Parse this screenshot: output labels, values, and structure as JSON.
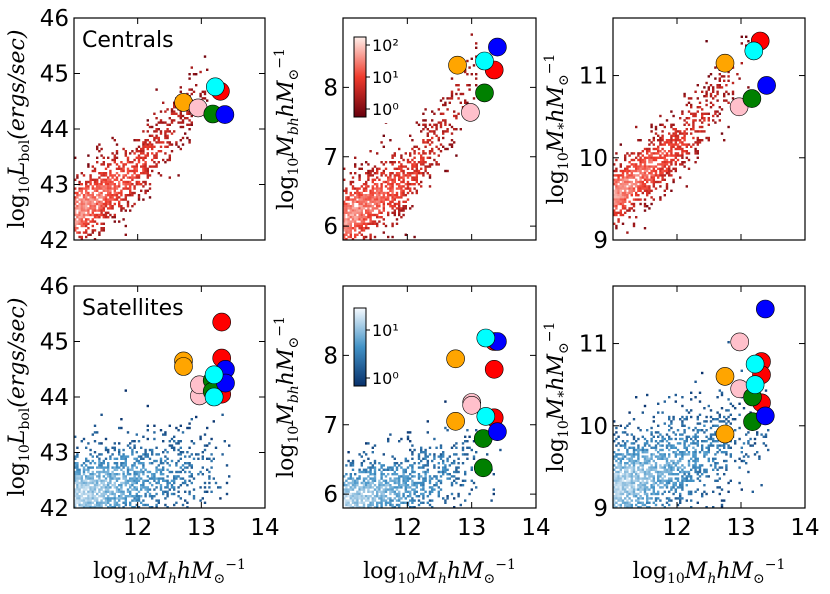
{
  "figure": {
    "row_labels": [
      "Centrals",
      "Satellites"
    ],
    "colorbar_top_ticks": [
      "10²",
      "10¹",
      "10⁰"
    ],
    "colorbar_bottom_ticks": [
      "10¹",
      "10⁰"
    ],
    "xlabel": "log₁₀M_h hM_⊙⁻¹",
    "ylabel_lbol": "log₁₀L_bol(ergs/sec)",
    "ylabel_mbh": "log₁₀M_bh hM_⊙⁻¹",
    "ylabel_mstar": "log₁₀M_* hM_⊙⁻¹",
    "cmap_top": "Reds",
    "cmap_bottom": "Blues"
  },
  "chart_data": [
    {
      "id": "centrals-lbol",
      "type": "scatter",
      "row": "Centrals",
      "label": "Centrals",
      "xlim": [
        11,
        14
      ],
      "ylim": [
        42,
        46
      ],
      "xticks": [
        12,
        13,
        14
      ],
      "yticks": [
        42,
        43,
        44,
        45,
        46
      ],
      "xlabel": "log₁₀M_h hM_⊙⁻¹",
      "ylabel": "log₁₀L_bol(ergs/sec)",
      "show_xticklabels": false,
      "heatmap": {
        "cmap": "Reds",
        "trend": [
          [
            11.0,
            42.5
          ],
          [
            12.0,
            43.3
          ],
          [
            12.8,
            44.4
          ],
          [
            13.0,
            44.8
          ]
        ],
        "spread": 0.35
      },
      "points": [
        {
          "x": 12.72,
          "y": 44.48,
          "color": "#ffa500"
        },
        {
          "x": 12.95,
          "y": 44.38,
          "color": "#ffc0cb"
        },
        {
          "x": 13.3,
          "y": 44.68,
          "color": "#ff0000"
        },
        {
          "x": 13.18,
          "y": 44.27,
          "color": "#008000"
        },
        {
          "x": 13.37,
          "y": 44.26,
          "color": "#0000ff"
        },
        {
          "x": 13.22,
          "y": 44.76,
          "color": "#00ffff"
        }
      ]
    },
    {
      "id": "centrals-mbh",
      "type": "scatter",
      "row": "Centrals",
      "xlim": [
        11,
        14
      ],
      "ylim": [
        5.8,
        9.0
      ],
      "xticks": [
        12,
        13,
        14
      ],
      "yticks": [
        6,
        7,
        8
      ],
      "xlabel": "log₁₀M_h hM_⊙⁻¹",
      "ylabel": "log₁₀M_bh hM_⊙⁻¹",
      "show_xticklabels": false,
      "colorbar": {
        "cmap": "Reds",
        "ticks": [
          "10²",
          "10¹",
          "10⁰"
        ],
        "position": "upper-left"
      },
      "heatmap": {
        "cmap": "Reds",
        "trend": [
          [
            11.0,
            6.1
          ],
          [
            12.0,
            6.7
          ],
          [
            12.8,
            7.8
          ],
          [
            13.0,
            8.3
          ]
        ],
        "spread": 0.3
      },
      "points": [
        {
          "x": 12.78,
          "y": 8.32,
          "color": "#ffa500"
        },
        {
          "x": 12.98,
          "y": 7.64,
          "color": "#ffc0cb"
        },
        {
          "x": 13.35,
          "y": 8.25,
          "color": "#ff0000"
        },
        {
          "x": 13.2,
          "y": 7.92,
          "color": "#008000"
        },
        {
          "x": 13.4,
          "y": 8.58,
          "color": "#0000ff"
        },
        {
          "x": 13.2,
          "y": 8.38,
          "color": "#00ffff"
        }
      ]
    },
    {
      "id": "centrals-mstar",
      "type": "scatter",
      "row": "Centrals",
      "xlim": [
        11,
        14
      ],
      "ylim": [
        9.0,
        11.7
      ],
      "xticks": [
        12,
        13,
        14
      ],
      "yticks": [
        9,
        10,
        11
      ],
      "xlabel": "log₁₀M_h hM_⊙⁻¹",
      "ylabel": "log₁₀M_* hM_⊙⁻¹",
      "show_xticklabels": false,
      "heatmap": {
        "cmap": "Reds",
        "trend": [
          [
            11.0,
            9.55
          ],
          [
            12.0,
            10.15
          ],
          [
            12.8,
            10.9
          ],
          [
            13.0,
            11.1
          ]
        ],
        "spread": 0.22
      },
      "points": [
        {
          "x": 12.75,
          "y": 11.15,
          "color": "#ffa500"
        },
        {
          "x": 12.97,
          "y": 10.62,
          "color": "#ffc0cb"
        },
        {
          "x": 13.3,
          "y": 11.42,
          "color": "#ff0000"
        },
        {
          "x": 13.17,
          "y": 10.72,
          "color": "#008000"
        },
        {
          "x": 13.4,
          "y": 10.88,
          "color": "#0000ff"
        },
        {
          "x": 13.2,
          "y": 11.3,
          "color": "#00ffff"
        }
      ]
    },
    {
      "id": "satellites-lbol",
      "type": "scatter",
      "row": "Satellites",
      "label": "Satellites",
      "xlim": [
        11,
        14
      ],
      "ylim": [
        42,
        46
      ],
      "xticks": [
        12,
        13,
        14
      ],
      "yticks": [
        42,
        43,
        44,
        45,
        46
      ],
      "xlabel": "log₁₀M_h hM_⊙⁻¹",
      "ylabel": "log₁₀L_bol(ergs/sec)",
      "show_xticklabels": true,
      "heatmap": {
        "cmap": "Blues",
        "trend": [
          [
            11.0,
            42.25
          ],
          [
            12.0,
            42.5
          ],
          [
            12.8,
            42.7
          ],
          [
            13.4,
            42.7
          ]
        ],
        "spread": 0.45
      },
      "points": [
        {
          "x": 12.72,
          "y": 44.65,
          "color": "#ffa500"
        },
        {
          "x": 12.72,
          "y": 44.55,
          "color": "#ffa500"
        },
        {
          "x": 12.97,
          "y": 44.02,
          "color": "#ffc0cb"
        },
        {
          "x": 12.97,
          "y": 44.22,
          "color": "#ffc0cb"
        },
        {
          "x": 13.32,
          "y": 45.35,
          "color": "#ff0000"
        },
        {
          "x": 13.32,
          "y": 44.7,
          "color": "#ff0000"
        },
        {
          "x": 13.32,
          "y": 44.05,
          "color": "#ff0000"
        },
        {
          "x": 13.17,
          "y": 44.3,
          "color": "#008000"
        },
        {
          "x": 13.17,
          "y": 44.1,
          "color": "#008000"
        },
        {
          "x": 13.38,
          "y": 44.5,
          "color": "#0000ff"
        },
        {
          "x": 13.38,
          "y": 44.25,
          "color": "#0000ff"
        },
        {
          "x": 13.2,
          "y": 44.4,
          "color": "#00ffff"
        },
        {
          "x": 13.2,
          "y": 44.0,
          "color": "#00ffff"
        }
      ]
    },
    {
      "id": "satellites-mbh",
      "type": "scatter",
      "row": "Satellites",
      "xlim": [
        11,
        14
      ],
      "ylim": [
        5.8,
        9.0
      ],
      "xticks": [
        12,
        13,
        14
      ],
      "yticks": [
        6,
        7,
        8
      ],
      "xlabel": "log₁₀M_h hM_⊙⁻¹",
      "ylabel": "log₁₀M_bh hM_⊙⁻¹",
      "show_xticklabels": true,
      "colorbar": {
        "cmap": "Blues",
        "ticks": [
          "10¹",
          "10⁰"
        ],
        "position": "upper-left"
      },
      "heatmap": {
        "cmap": "Blues",
        "trend": [
          [
            11.0,
            5.9
          ],
          [
            12.0,
            6.15
          ],
          [
            12.8,
            6.4
          ],
          [
            13.4,
            6.5
          ]
        ],
        "spread": 0.3
      },
      "points": [
        {
          "x": 12.75,
          "y": 7.95,
          "color": "#ffa500"
        },
        {
          "x": 12.75,
          "y": 7.05,
          "color": "#ffa500"
        },
        {
          "x": 13.0,
          "y": 7.32,
          "color": "#ffc0cb"
        },
        {
          "x": 13.0,
          "y": 7.28,
          "color": "#ffc0cb"
        },
        {
          "x": 13.35,
          "y": 8.2,
          "color": "#ff0000"
        },
        {
          "x": 13.35,
          "y": 7.8,
          "color": "#ff0000"
        },
        {
          "x": 13.35,
          "y": 7.1,
          "color": "#ff0000"
        },
        {
          "x": 13.18,
          "y": 6.8,
          "color": "#008000"
        },
        {
          "x": 13.18,
          "y": 6.38,
          "color": "#008000"
        },
        {
          "x": 13.4,
          "y": 8.2,
          "color": "#0000ff"
        },
        {
          "x": 13.4,
          "y": 6.9,
          "color": "#0000ff"
        },
        {
          "x": 13.22,
          "y": 8.25,
          "color": "#00ffff"
        },
        {
          "x": 13.22,
          "y": 7.12,
          "color": "#00ffff"
        }
      ]
    },
    {
      "id": "satellites-mstar",
      "type": "scatter",
      "row": "Satellites",
      "xlim": [
        11,
        14
      ],
      "ylim": [
        9.0,
        11.7
      ],
      "xticks": [
        12,
        13,
        14
      ],
      "yticks": [
        9,
        10,
        11
      ],
      "xlabel": "log₁₀M_h hM_⊙⁻¹",
      "ylabel": "log₁₀M_* hM_⊙⁻¹",
      "show_xticklabels": true,
      "heatmap": {
        "cmap": "Blues",
        "trend": [
          [
            11.0,
            9.25
          ],
          [
            12.0,
            9.55
          ],
          [
            12.8,
            9.85
          ],
          [
            13.4,
            9.9
          ]
        ],
        "spread": 0.35
      },
      "points": [
        {
          "x": 12.75,
          "y": 10.6,
          "color": "#ffa500"
        },
        {
          "x": 12.75,
          "y": 9.9,
          "color": "#ffa500"
        },
        {
          "x": 12.98,
          "y": 11.02,
          "color": "#ffc0cb"
        },
        {
          "x": 12.98,
          "y": 10.45,
          "color": "#ffc0cb"
        },
        {
          "x": 13.32,
          "y": 10.78,
          "color": "#ff0000"
        },
        {
          "x": 13.32,
          "y": 10.62,
          "color": "#ff0000"
        },
        {
          "x": 13.32,
          "y": 10.28,
          "color": "#ff0000"
        },
        {
          "x": 13.18,
          "y": 10.35,
          "color": "#008000"
        },
        {
          "x": 13.18,
          "y": 10.05,
          "color": "#008000"
        },
        {
          "x": 13.38,
          "y": 11.42,
          "color": "#0000ff"
        },
        {
          "x": 13.38,
          "y": 10.12,
          "color": "#0000ff"
        },
        {
          "x": 13.22,
          "y": 10.75,
          "color": "#00ffff"
        },
        {
          "x": 13.22,
          "y": 10.5,
          "color": "#00ffff"
        }
      ]
    }
  ]
}
